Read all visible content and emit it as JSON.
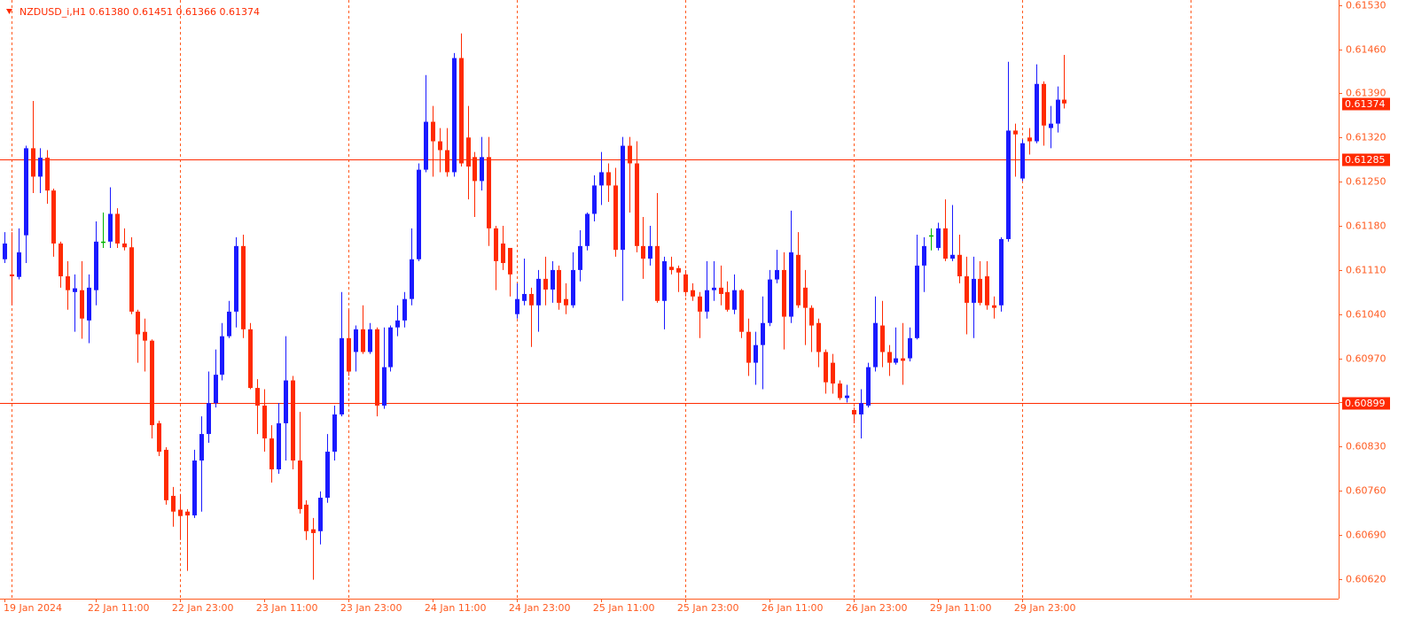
{
  "chart_data": {
    "type": "candlestick",
    "title": "NZDUSD_i,H1  0.61380 0.61451 0.61366 0.61374",
    "categories": [
      "19 Jan 2024",
      null,
      null,
      null,
      null,
      null,
      null,
      null,
      null,
      null,
      null,
      null,
      null,
      "22 Jan 11:00",
      null,
      null,
      null,
      null,
      null,
      null,
      null,
      null,
      null,
      null,
      null,
      "22 Jan 23:00",
      null,
      null,
      null,
      null,
      null,
      null,
      null,
      null,
      null,
      null,
      null,
      "23 Jan 11:00",
      null,
      null,
      null,
      null,
      null,
      null,
      null,
      null,
      null,
      null,
      null,
      "23 Jan 23:00",
      null,
      null,
      null,
      null,
      null,
      null,
      null,
      null,
      null,
      null,
      null,
      "24 Jan 11:00",
      null,
      null,
      null,
      null,
      null,
      null,
      null,
      null,
      null,
      null,
      null,
      "24 Jan 23:00",
      null,
      null,
      null,
      null,
      null,
      null,
      null,
      null,
      null,
      null,
      null,
      "25 Jan 11:00",
      null,
      null,
      null,
      null,
      null,
      null,
      null,
      null,
      null,
      null,
      null,
      "25 Jan 23:00",
      null,
      null,
      null,
      null,
      null,
      null,
      null,
      null,
      null,
      null,
      null,
      "26 Jan 11:00",
      null,
      null,
      null,
      null,
      null,
      null,
      null,
      null,
      null,
      null,
      null,
      "26 Jan 23:00",
      null,
      null,
      null,
      null,
      null,
      null,
      null,
      null,
      null,
      null,
      null,
      "29 Jan 11:00",
      null,
      null,
      null,
      null,
      null,
      null,
      null,
      null,
      null,
      null,
      null,
      "29 Jan 23:00",
      null,
      null,
      null,
      null,
      null,
      null
    ],
    "open": [
      0.61127,
      0.61103,
      0.61099,
      0.61165,
      0.61303,
      0.61258,
      0.61288,
      0.61236,
      0.61152,
      0.611,
      0.61075,
      0.61078,
      0.6103,
      0.61078,
      0.61155,
      0.61155,
      0.61199,
      0.61152,
      0.61146,
      0.61044,
      0.61012,
      0.60998,
      0.60867,
      0.60825,
      0.60752,
      0.6073,
      0.60727,
      0.60721,
      0.60808,
      0.6085,
      0.60899,
      0.60944,
      0.61005,
      0.61044,
      0.61148,
      0.61016,
      0.60923,
      0.60895,
      0.60843,
      0.60794,
      0.60867,
      0.60935,
      0.60808,
      0.60738,
      0.60699,
      0.60696,
      0.60749,
      0.60822,
      0.60881,
      0.61002,
      0.6098,
      0.61016,
      0.6098,
      0.61016,
      0.60895,
      0.60956,
      0.61019,
      0.6103,
      0.61064,
      0.61127,
      0.61269,
      0.61345,
      0.61314,
      0.613,
      0.61265,
      0.61446,
      0.6132,
      0.61289,
      0.61251,
      0.61289,
      0.61176,
      0.61152,
      0.61145,
      0.6104,
      0.61061,
      0.61072,
      0.61054,
      0.61096,
      0.61079,
      0.6111,
      0.61064,
      0.61054,
      0.6111,
      0.61148,
      0.61199,
      0.61244,
      0.61265,
      0.61244,
      0.61142,
      0.61307,
      0.61279,
      0.61148,
      0.61128,
      0.61148,
      0.61061,
      0.61115,
      0.61113,
      0.61103,
      0.61078,
      0.61068,
      0.61044,
      0.61078,
      0.61082,
      0.61075,
      0.61047,
      0.61078,
      0.61012,
      0.60963,
      0.60991,
      0.61026,
      0.61095,
      0.6111,
      0.61036,
      0.61134,
      0.61082,
      0.6105,
      0.61026,
      0.6098,
      0.60963,
      0.6093,
      0.60907,
      0.60888,
      0.60881,
      0.60895,
      0.60956,
      0.61022,
      0.6098,
      0.60963,
      0.6097,
      0.6097,
      0.61002,
      0.61117,
      0.61165,
      0.61145,
      0.61176,
      0.61128,
      0.61134,
      0.611,
      0.61058,
      0.61096,
      0.611,
      0.61054,
      0.61054,
      0.61159,
      0.61331,
      0.61255,
      0.6132,
      0.61314,
      0.61405,
      0.61335,
      0.61342,
      0.6138
    ],
    "high": [
      0.6117,
      0.6117,
      0.61176,
      0.61307,
      0.61378,
      0.61303,
      0.613,
      0.61239,
      0.61155,
      0.61124,
      0.61103,
      0.61124,
      0.61103,
      0.61187,
      0.61201,
      0.61241,
      0.61208,
      0.61176,
      0.61162,
      0.61047,
      0.61033,
      0.61,
      0.60871,
      0.60829,
      0.60766,
      0.60755,
      0.60731,
      0.60825,
      0.60878,
      0.60949,
      0.60984,
      0.61026,
      0.61061,
      0.61162,
      0.61166,
      0.61026,
      0.60937,
      0.60921,
      0.60864,
      0.60899,
      0.61005,
      0.60942,
      0.60885,
      0.60745,
      0.60717,
      0.60759,
      0.6085,
      0.60895,
      0.61075,
      0.61047,
      0.61022,
      0.61054,
      0.61026,
      0.61019,
      0.61019,
      0.61022,
      0.61054,
      0.61075,
      0.61176,
      0.61279,
      0.61419,
      0.6137,
      0.61335,
      0.61335,
      0.61454,
      0.61485,
      0.6137,
      0.61297,
      0.61321,
      0.61321,
      0.6118,
      0.6118,
      0.61145,
      0.61089,
      0.61128,
      0.61082,
      0.6111,
      0.61131,
      0.61124,
      0.61117,
      0.61089,
      0.61138,
      0.61173,
      0.61201,
      0.6126,
      0.61297,
      0.61279,
      0.61272,
      0.61321,
      0.61321,
      0.61314,
      0.61194,
      0.6118,
      0.61232,
      0.61131,
      0.61131,
      0.61117,
      0.6111,
      0.61089,
      0.61075,
      0.61124,
      0.61124,
      0.61117,
      0.61092,
      0.61103,
      0.6108,
      0.61033,
      0.61012,
      0.61068,
      0.6111,
      0.61142,
      0.61138,
      0.61204,
      0.6117,
      0.6111,
      0.61054,
      0.61033,
      0.60984,
      0.60977,
      0.60935,
      0.60928,
      0.60892,
      0.60921,
      0.60963,
      0.61068,
      0.61061,
      0.60991,
      0.61019,
      0.61026,
      0.61019,
      0.61166,
      0.61162,
      0.61176,
      0.61185,
      0.61222,
      0.61213,
      0.61166,
      0.61131,
      0.61131,
      0.61124,
      0.61124,
      0.61068,
      0.61162,
      0.6144,
      0.61342,
      0.61317,
      0.61335,
      0.61436,
      0.61409,
      0.6137,
      0.61401,
      0.61451
    ],
    "low": [
      0.61121,
      0.61054,
      0.61095,
      0.61121,
      0.61232,
      0.61232,
      0.61215,
      0.61131,
      0.61082,
      0.61047,
      0.61012,
      0.61001,
      0.60994,
      0.61054,
      0.61145,
      0.61145,
      0.61145,
      0.61141,
      0.6104,
      0.60963,
      0.60949,
      0.60843,
      0.60815,
      0.60738,
      0.60703,
      0.60682,
      0.60633,
      0.60717,
      0.60727,
      0.60836,
      0.60892,
      0.60935,
      0.61002,
      0.61019,
      0.61002,
      0.60921,
      0.6085,
      0.60822,
      0.60773,
      0.60787,
      0.60808,
      0.60794,
      0.60724,
      0.60682,
      0.60619,
      0.60675,
      0.60741,
      0.60808,
      0.60878,
      0.60942,
      0.60949,
      0.60977,
      0.60977,
      0.60878,
      0.6089,
      0.60949,
      0.61005,
      0.61019,
      0.61054,
      0.61124,
      0.61265,
      0.61258,
      0.61265,
      0.61258,
      0.61258,
      0.61274,
      0.61222,
      0.61194,
      0.61236,
      0.61148,
      0.61078,
      0.6111,
      0.61068,
      0.61033,
      0.61054,
      0.60988,
      0.61012,
      0.61054,
      0.61058,
      0.61047,
      0.6104,
      0.6105,
      0.61092,
      0.61141,
      0.61187,
      0.61213,
      0.61218,
      0.61131,
      0.61061,
      0.61201,
      0.61138,
      0.61096,
      0.61117,
      0.61058,
      0.61016,
      0.61103,
      0.61075,
      0.61068,
      0.61061,
      0.61002,
      0.61033,
      0.61061,
      0.61054,
      0.61044,
      0.6104,
      0.61002,
      0.60942,
      0.60928,
      0.60921,
      0.61021,
      0.61089,
      0.60984,
      0.61026,
      0.6105,
      0.60991,
      0.6098,
      0.60956,
      0.60914,
      0.60914,
      0.60904,
      0.609,
      0.60867,
      0.60843,
      0.60892,
      0.60949,
      0.60956,
      0.60942,
      0.6096,
      0.60928,
      0.60965,
      0.61,
      0.61075,
      0.61141,
      0.61141,
      0.61124,
      0.61124,
      0.61089,
      0.61008,
      0.61002,
      0.61054,
      0.61047,
      0.61033,
      0.61044,
      0.61155,
      0.61258,
      0.61251,
      0.61293,
      0.61311,
      0.61307,
      0.61303,
      0.61328,
      0.61366
    ],
    "close": [
      0.61152,
      0.611,
      0.61138,
      0.61303,
      0.61258,
      0.61288,
      0.61236,
      0.61152,
      0.611,
      0.61078,
      0.61081,
      0.61033,
      0.61082,
      0.61155,
      0.61155,
      0.61199,
      0.61152,
      0.61146,
      0.61044,
      0.61008,
      0.60998,
      0.60864,
      0.60822,
      0.60745,
      0.60727,
      0.6072,
      0.60721,
      0.60808,
      0.6085,
      0.60899,
      0.60944,
      0.61005,
      0.61044,
      0.61148,
      0.61016,
      0.60923,
      0.60895,
      0.60843,
      0.60794,
      0.60867,
      0.60935,
      0.60808,
      0.60731,
      0.60696,
      0.60693,
      0.60749,
      0.60822,
      0.60881,
      0.61002,
      0.60949,
      0.61016,
      0.6098,
      0.61016,
      0.60895,
      0.60956,
      0.61019,
      0.6103,
      0.61064,
      0.61127,
      0.61269,
      0.61345,
      0.61314,
      0.613,
      0.61265,
      0.61446,
      0.61279,
      0.61274,
      0.61251,
      0.61289,
      0.61176,
      0.61124,
      0.61121,
      0.61103,
      0.61064,
      0.61072,
      0.61054,
      0.61096,
      0.61079,
      0.6111,
      0.61058,
      0.61054,
      0.6111,
      0.61148,
      0.61199,
      0.61244,
      0.61265,
      0.61244,
      0.61142,
      0.61307,
      0.61279,
      0.61148,
      0.61128,
      0.61148,
      0.61061,
      0.61124,
      0.6111,
      0.61106,
      0.61075,
      0.61068,
      0.61044,
      0.61078,
      0.61082,
      0.61072,
      0.61047,
      0.61078,
      0.61012,
      0.60963,
      0.60991,
      0.61026,
      0.61095,
      0.6111,
      0.61036,
      0.61138,
      0.61054,
      0.6105,
      0.61022,
      0.6098,
      0.60932,
      0.6093,
      0.60907,
      0.60911,
      0.60881,
      0.60899,
      0.60956,
      0.61026,
      0.6098,
      0.60963,
      0.6097,
      0.60966,
      0.61002,
      0.61117,
      0.61148,
      0.61165,
      0.61176,
      0.61128,
      0.61134,
      0.611,
      0.61058,
      0.61096,
      0.61058,
      0.61054,
      0.6105,
      0.61159,
      0.61331,
      0.61325,
      0.61311,
      0.61314,
      0.61405,
      0.61339,
      0.61342,
      0.6138,
      0.61374
    ],
    "up_color": "#1a1aff",
    "down_color": "#ff2a00",
    "doji_color": "#00b400",
    "line_color": "#ff2a00",
    "axis_color": "#ff5a1f",
    "hlines": [
      0.61285,
      0.60899
    ],
    "ylim": [
      0.60589,
      0.61538
    ],
    "yticks": [
      {
        "value": 0.6153,
        "label": "0.61530"
      },
      {
        "value": 0.6146,
        "label": "0.61460"
      },
      {
        "value": 0.6139,
        "label": "0.61390"
      },
      {
        "value": 0.6132,
        "label": "0.61320"
      },
      {
        "value": 0.6125,
        "label": "0.61250"
      },
      {
        "value": 0.6118,
        "label": "0.61180"
      },
      {
        "value": 0.6111,
        "label": "0.61110"
      },
      {
        "value": 0.6104,
        "label": "0.61040"
      },
      {
        "value": 0.6097,
        "label": "0.60970"
      },
      {
        "value": 0.609,
        "label": "0.60900"
      },
      {
        "value": 0.6083,
        "label": "0.60830"
      },
      {
        "value": 0.6076,
        "label": "0.60760"
      },
      {
        "value": 0.6069,
        "label": "0.60690"
      },
      {
        "value": 0.6062,
        "label": "0.60620"
      }
    ]
  }
}
